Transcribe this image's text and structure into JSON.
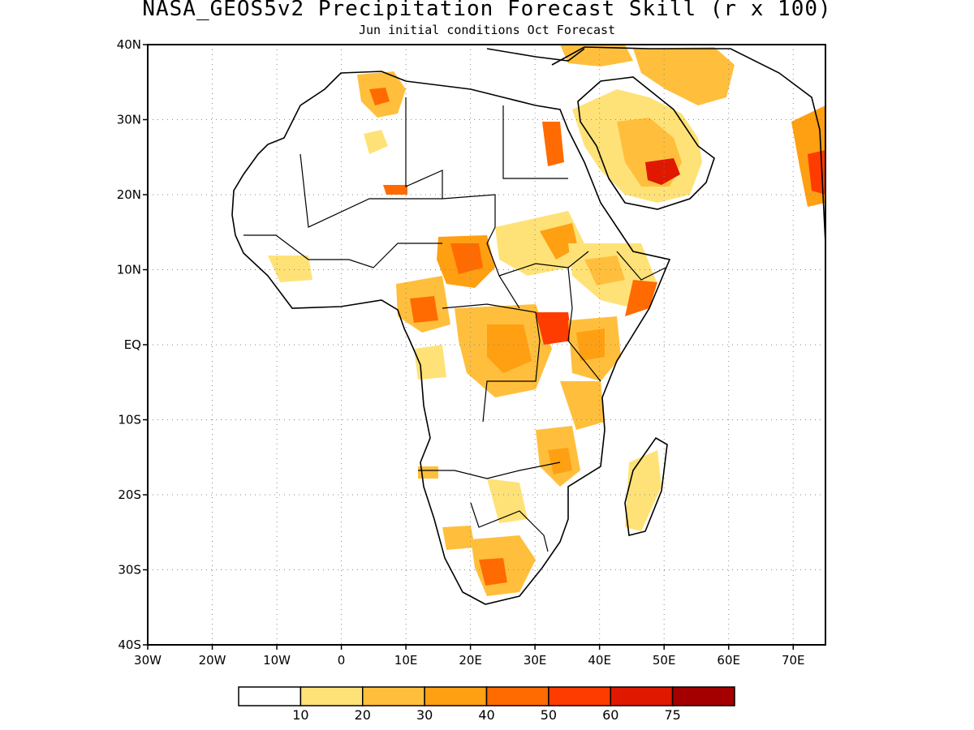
{
  "title": "NASA_GEOS5v2 Precipitation Forecast Skill (r x 100)",
  "subtitle": "Jun initial conditions  Oct Forecast",
  "map": {
    "lon_range": [
      -30,
      75
    ],
    "lat_range": [
      -40,
      40
    ],
    "grid": true,
    "lon_ticks": [
      "30W",
      "20W",
      "10W",
      "0",
      "10E",
      "20E",
      "30E",
      "40E",
      "50E",
      "60E",
      "70E"
    ],
    "lat_ticks": [
      "40N",
      "30N",
      "20N",
      "10N",
      "EQ",
      "10S",
      "20S",
      "30S",
      "40S"
    ]
  },
  "legend": {
    "colors": [
      "#ffffff",
      "#ffe277",
      "#ffbf3c",
      "#ff9f12",
      "#ff6b00",
      "#ff3c00",
      "#e01800",
      "#a50000"
    ],
    "labels": [
      "10",
      "20",
      "30",
      "40",
      "50",
      "60",
      "75"
    ]
  }
}
